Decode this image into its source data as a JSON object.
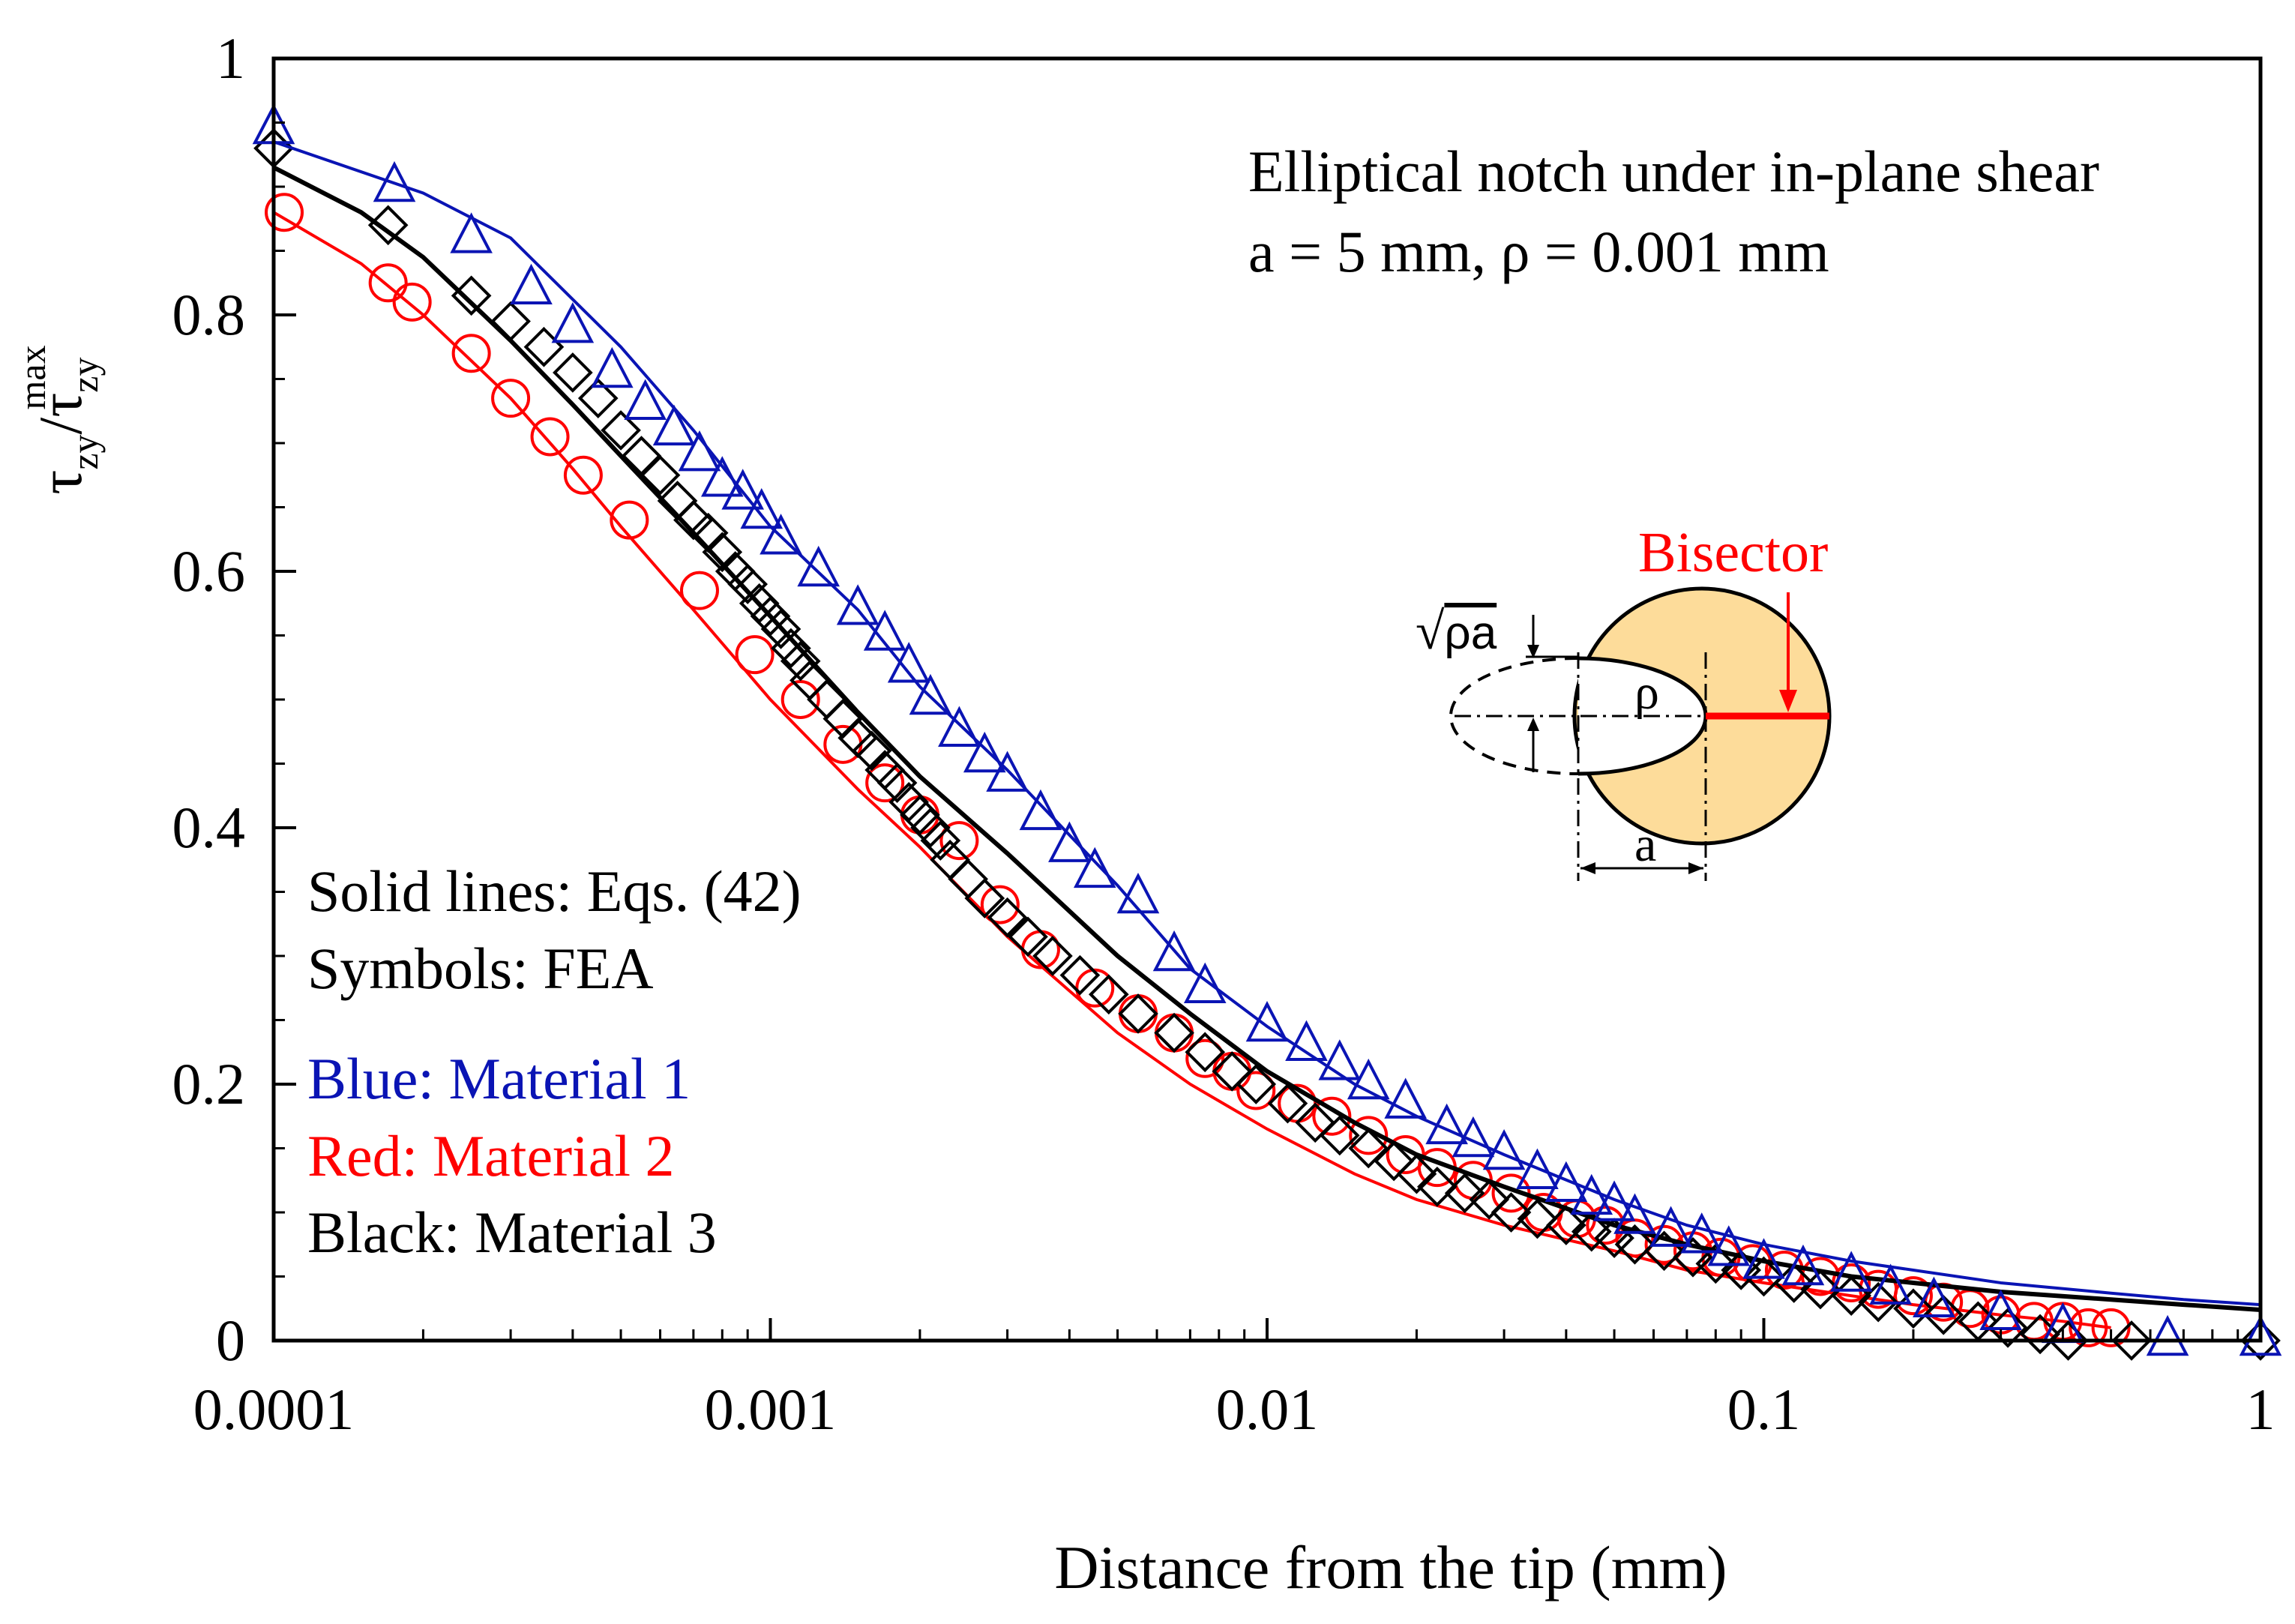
{
  "chart_data": {
    "type": "scatter",
    "title": "Elliptical notch under in-plane shear",
    "subtitle": "a = 5 mm, ρ = 0.001 mm",
    "xlabel": "Distance from the tip (mm)",
    "ylabel_main": "τ",
    "ylabel_sub": "zy",
    "ylabel_slash": "/",
    "ylabel_sup": "max",
    "xscale": "log",
    "xlim": [
      0.0001,
      1
    ],
    "ylim": [
      0,
      1
    ],
    "xticks": [
      {
        "value": 0.0001,
        "label": "0.0001"
      },
      {
        "value": 0.001,
        "label": "0.001"
      },
      {
        "value": 0.01,
        "label": "0.01"
      },
      {
        "value": 0.1,
        "label": "0.1"
      },
      {
        "value": 1,
        "label": "1"
      }
    ],
    "yticks": [
      {
        "value": 0,
        "label": "0"
      },
      {
        "value": 0.2,
        "label": "0.2"
      },
      {
        "value": 0.4,
        "label": "0.4"
      },
      {
        "value": 0.6,
        "label": "0.6"
      },
      {
        "value": 0.8,
        "label": "0.8"
      },
      {
        "value": 1,
        "label": "1"
      }
    ],
    "notes": [
      {
        "text": "Solid lines: Eqs. (42)",
        "color": "#000000"
      },
      {
        "text": "Symbols: FEA",
        "color": "#000000"
      },
      {
        "text": "Blue: Material 1",
        "color": "#0a14b4"
      },
      {
        "text": "Red: Material 2",
        "color": "#ff0000"
      },
      {
        "text": "Black: Material 3",
        "color": "#000000"
      }
    ],
    "inset": {
      "bisector_label": "Bisector",
      "sqrt_symbol": "√",
      "sqrt_arg": "ρa",
      "rho_label": "ρ",
      "a_label": "a",
      "fill_color": "#fddc9a",
      "bisector_color": "#ff0000"
    },
    "series": [
      {
        "name": "Material 1",
        "color": "#0a14b4",
        "marker": "triangle",
        "line": {
          "x": [
            0.0001,
            0.0002,
            0.0003,
            0.0005,
            0.0007,
            0.001,
            0.0015,
            0.002,
            0.003,
            0.005,
            0.007,
            0.01,
            0.015,
            0.02,
            0.03,
            0.05,
            0.07,
            0.1,
            0.15,
            0.2,
            0.3,
            0.5,
            0.7,
            1
          ],
          "y": [
            0.935,
            0.895,
            0.86,
            0.775,
            0.71,
            0.635,
            0.57,
            0.51,
            0.445,
            0.355,
            0.29,
            0.245,
            0.2,
            0.175,
            0.145,
            0.11,
            0.09,
            0.075,
            0.062,
            0.055,
            0.045,
            0.037,
            0.032,
            0.028
          ]
        },
        "points": {
          "x": [
            0.0001,
            0.000175,
            0.00025,
            0.00033,
            0.0004,
            0.00048,
            0.00056,
            0.00064,
            0.00072,
            0.0008,
            0.00088,
            0.00096,
            0.00105,
            0.00125,
            0.0015,
            0.0017,
            0.0019,
            0.0021,
            0.0024,
            0.0027,
            0.003,
            0.0035,
            0.004,
            0.0045,
            0.0055,
            0.0065,
            0.0075,
            0.01,
            0.012,
            0.014,
            0.016,
            0.019,
            0.023,
            0.026,
            0.03,
            0.035,
            0.04,
            0.045,
            0.05,
            0.055,
            0.065,
            0.075,
            0.085,
            0.1,
            0.12,
            0.15,
            0.18,
            0.22,
            0.3,
            0.4,
            0.65,
            1
          ],
          "y": [
            0.945,
            0.9,
            0.86,
            0.82,
            0.79,
            0.755,
            0.73,
            0.71,
            0.69,
            0.67,
            0.66,
            0.645,
            0.625,
            0.6,
            0.57,
            0.55,
            0.525,
            0.5,
            0.475,
            0.455,
            0.44,
            0.41,
            0.385,
            0.365,
            0.345,
            0.3,
            0.275,
            0.245,
            0.23,
            0.215,
            0.2,
            0.185,
            0.165,
            0.155,
            0.145,
            0.13,
            0.12,
            0.11,
            0.105,
            0.095,
            0.085,
            0.08,
            0.07,
            0.06,
            0.055,
            0.05,
            0.04,
            0.03,
            0.02,
            0.01,
            0.0,
            0.0
          ]
        }
      },
      {
        "name": "Material 2",
        "color": "#ff0000",
        "marker": "circle",
        "line": {
          "x": [
            0.0001,
            0.00015,
            0.0002,
            0.0003,
            0.0004,
            0.0005,
            0.0007,
            0.001,
            0.0015,
            0.002,
            0.003,
            0.005,
            0.007,
            0.01,
            0.015,
            0.02,
            0.03,
            0.05,
            0.07,
            0.1,
            0.15,
            0.2,
            0.3,
            0.4,
            0.5
          ],
          "y": [
            0.88,
            0.84,
            0.8,
            0.735,
            0.68,
            0.635,
            0.57,
            0.5,
            0.43,
            0.385,
            0.315,
            0.24,
            0.2,
            0.165,
            0.13,
            0.11,
            0.09,
            0.07,
            0.055,
            0.045,
            0.035,
            0.028,
            0.02,
            0.015,
            0.01
          ]
        },
        "points": {
          "x": [
            0.000105,
            0.00017,
            0.00019,
            0.00025,
            0.0003,
            0.00036,
            0.00042,
            0.00052,
            0.00072,
            0.00093,
            0.00115,
            0.0014,
            0.0017,
            0.002,
            0.0024,
            0.0029,
            0.0035,
            0.0045,
            0.0055,
            0.0065,
            0.0075,
            0.0085,
            0.0095,
            0.0115,
            0.0135,
            0.016,
            0.019,
            0.022,
            0.026,
            0.031,
            0.036,
            0.042,
            0.048,
            0.055,
            0.063,
            0.072,
            0.082,
            0.095,
            0.11,
            0.13,
            0.15,
            0.17,
            0.2,
            0.23,
            0.26,
            0.3,
            0.35,
            0.4,
            0.45,
            0.5
          ],
          "y": [
            0.88,
            0.825,
            0.81,
            0.77,
            0.735,
            0.705,
            0.675,
            0.64,
            0.585,
            0.535,
            0.5,
            0.465,
            0.435,
            0.41,
            0.39,
            0.34,
            0.305,
            0.275,
            0.255,
            0.24,
            0.22,
            0.21,
            0.195,
            0.185,
            0.175,
            0.16,
            0.145,
            0.135,
            0.125,
            0.115,
            0.1,
            0.095,
            0.09,
            0.08,
            0.075,
            0.07,
            0.065,
            0.06,
            0.055,
            0.05,
            0.045,
            0.04,
            0.035,
            0.03,
            0.025,
            0.02,
            0.015,
            0.015,
            0.01,
            0.01
          ]
        }
      },
      {
        "name": "Material 3",
        "color": "#000000",
        "marker": "diamond",
        "line": {
          "x": [
            0.0001,
            0.00015,
            0.0002,
            0.0003,
            0.0004,
            0.0005,
            0.0007,
            0.001,
            0.0015,
            0.002,
            0.003,
            0.005,
            0.007,
            0.01,
            0.015,
            0.02,
            0.03,
            0.05,
            0.07,
            0.1,
            0.15,
            0.2,
            0.3,
            0.5,
            0.7,
            1
          ],
          "y": [
            0.915,
            0.88,
            0.845,
            0.78,
            0.73,
            0.69,
            0.63,
            0.565,
            0.49,
            0.44,
            0.38,
            0.3,
            0.255,
            0.21,
            0.17,
            0.145,
            0.12,
            0.09,
            0.075,
            0.062,
            0.05,
            0.045,
            0.038,
            0.032,
            0.028,
            0.024
          ]
        },
        "points": {
          "x": [
            0.0001,
            0.00017,
            0.00025,
            0.0003,
            0.00035,
            0.0004,
            0.00045,
            0.0005,
            0.00055,
            0.0006,
            0.00065,
            0.0007,
            0.00075,
            0.0008,
            0.00085,
            0.0009,
            0.00095,
            0.001,
            0.00105,
            0.0011,
            0.00115,
            0.0012,
            0.0013,
            0.0014,
            0.0015,
            0.0016,
            0.0017,
            0.0018,
            0.0019,
            0.002,
            0.0021,
            0.0022,
            0.0023,
            0.0025,
            0.0027,
            0.003,
            0.0033,
            0.0037,
            0.0042,
            0.0048,
            0.0055,
            0.0065,
            0.0075,
            0.0085,
            0.0095,
            0.011,
            0.0125,
            0.014,
            0.016,
            0.018,
            0.02,
            0.022,
            0.025,
            0.028,
            0.031,
            0.035,
            0.04,
            0.045,
            0.05,
            0.055,
            0.063,
            0.072,
            0.08,
            0.09,
            0.1,
            0.115,
            0.13,
            0.15,
            0.17,
            0.2,
            0.23,
            0.27,
            0.31,
            0.36,
            0.41,
            0.55,
            1
          ],
          "y": [
            0.93,
            0.87,
            0.815,
            0.795,
            0.775,
            0.755,
            0.735,
            0.71,
            0.69,
            0.675,
            0.655,
            0.64,
            0.63,
            0.615,
            0.6,
            0.59,
            0.575,
            0.565,
            0.555,
            0.54,
            0.53,
            0.515,
            0.5,
            0.485,
            0.47,
            0.46,
            0.445,
            0.435,
            0.42,
            0.41,
            0.4,
            0.39,
            0.375,
            0.36,
            0.345,
            0.33,
            0.315,
            0.3,
            0.285,
            0.27,
            0.255,
            0.24,
            0.225,
            0.21,
            0.2,
            0.185,
            0.17,
            0.16,
            0.15,
            0.14,
            0.13,
            0.12,
            0.115,
            0.11,
            0.1,
            0.095,
            0.09,
            0.085,
            0.08,
            0.075,
            0.07,
            0.065,
            0.06,
            0.055,
            0.05,
            0.045,
            0.04,
            0.035,
            0.03,
            0.025,
            0.02,
            0.015,
            0.01,
            0.005,
            0.0,
            0.0,
            0.0
          ]
        }
      }
    ]
  }
}
